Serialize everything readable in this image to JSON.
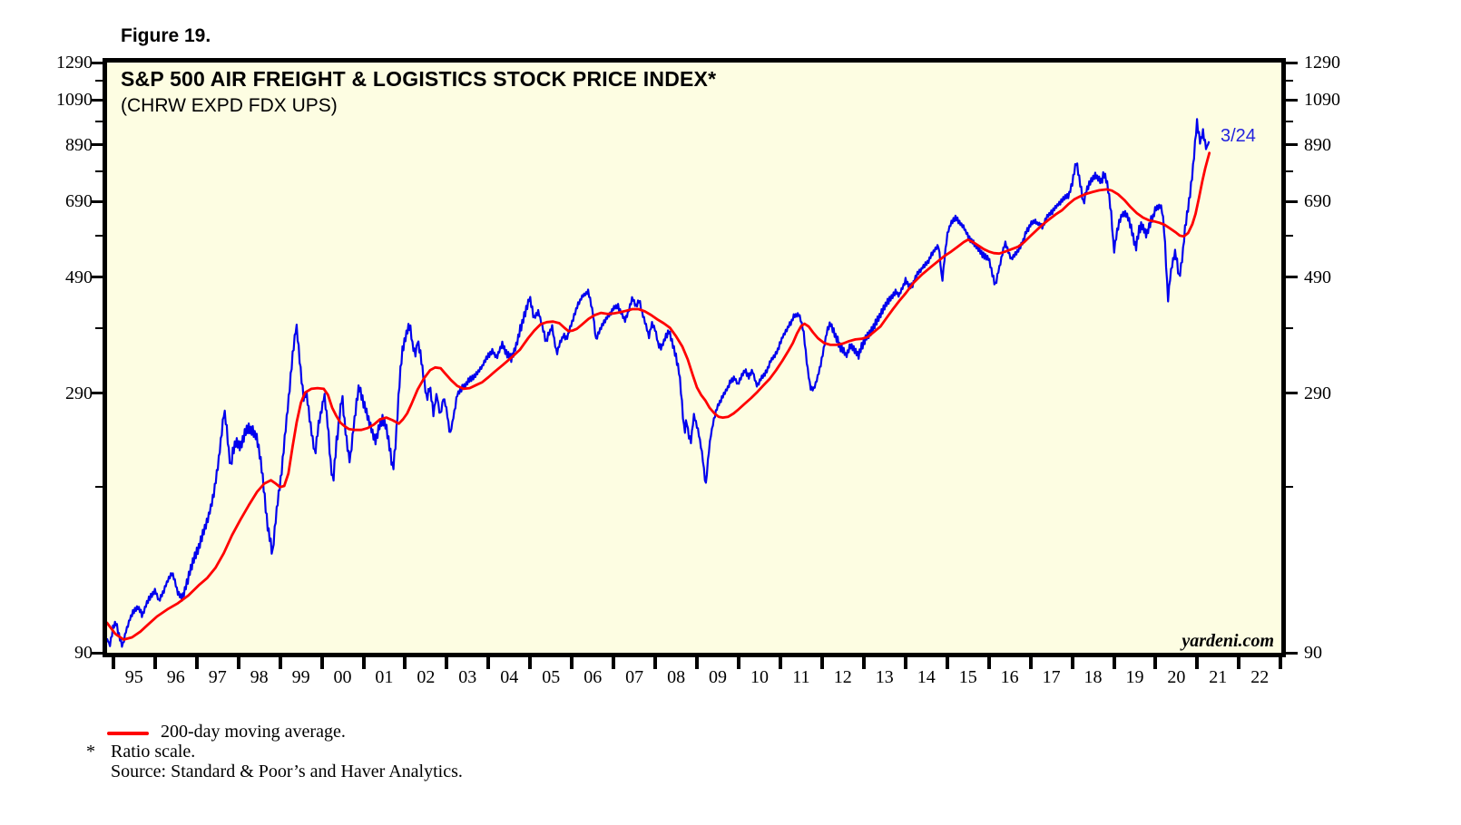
{
  "figure_label": "Figure 19.",
  "footnotes": {
    "star": "*",
    "ratio_scale": "Ratio scale.",
    "source": "Source: Standard & Poor’s and Haver Analytics."
  },
  "colors": {
    "background": "#FFFFFF",
    "plot_background": "#FDFDE2",
    "border": "#000000",
    "price_line": "#0000EE",
    "ma_line": "#FF0000",
    "label_blue": "#2222DD",
    "text": "#000000"
  },
  "chart_data": {
    "type": "line",
    "title": "S&P 500 AIR FREIGHT & LOGISTICS STOCK PRICE INDEX*",
    "subtitle": "(CHRW EXPD FDX UPS)",
    "watermark": "yardeni.com",
    "last_point_label": "3/24",
    "legend": {
      "swatch_color": "#FF0000",
      "label": "200-day moving average."
    },
    "y_axis": {
      "scale": "log",
      "top_value": 1290,
      "bottom_value": 90,
      "major_ticks": [
        1290,
        1090,
        890,
        690,
        490,
        290,
        90
      ],
      "minor_ticks": [
        1190,
        990,
        790,
        590,
        390,
        190
      ]
    },
    "x_axis": {
      "left_year": 1994.852,
      "right_year": 2023.016,
      "boundary_tick_start": 1995,
      "boundary_tick_end": 2023,
      "year_labels": [
        "95",
        "96",
        "97",
        "98",
        "99",
        "00",
        "01",
        "02",
        "03",
        "04",
        "05",
        "06",
        "07",
        "08",
        "09",
        "10",
        "11",
        "12",
        "13",
        "14",
        "15",
        "16",
        "17",
        "18",
        "19",
        "20",
        "21",
        "22"
      ]
    },
    "series": [
      {
        "name": "S&P 500 Air Freight & Logistics stock price index (daily)",
        "color": "#0000EE",
        "style": "jagged-daily",
        "points": [
          [
            1994.85,
            96
          ],
          [
            1994.92,
            93
          ],
          [
            1995.0,
            101
          ],
          [
            1995.07,
            103
          ],
          [
            1995.15,
            96
          ],
          [
            1995.22,
            92
          ],
          [
            1995.3,
            98
          ],
          [
            1995.4,
            104
          ],
          [
            1995.5,
            108
          ],
          [
            1995.6,
            110
          ],
          [
            1995.7,
            106
          ],
          [
            1995.8,
            112
          ],
          [
            1995.9,
            116
          ],
          [
            1996.0,
            119
          ],
          [
            1996.1,
            113
          ],
          [
            1996.2,
            118
          ],
          [
            1996.3,
            124
          ],
          [
            1996.42,
            128
          ],
          [
            1996.55,
            118
          ],
          [
            1996.65,
            115
          ],
          [
            1996.75,
            122
          ],
          [
            1996.85,
            131
          ],
          [
            1996.95,
            138
          ],
          [
            1997.05,
            144
          ],
          [
            1997.16,
            155
          ],
          [
            1997.3,
            168
          ],
          [
            1997.42,
            185
          ],
          [
            1997.52,
            210
          ],
          [
            1997.6,
            240
          ],
          [
            1997.66,
            266
          ],
          [
            1997.72,
            245
          ],
          [
            1997.78,
            215
          ],
          [
            1997.82,
            205
          ],
          [
            1997.88,
            222
          ],
          [
            1997.95,
            232
          ],
          [
            2
          ]
        ]
      }
    ]
  }
}
